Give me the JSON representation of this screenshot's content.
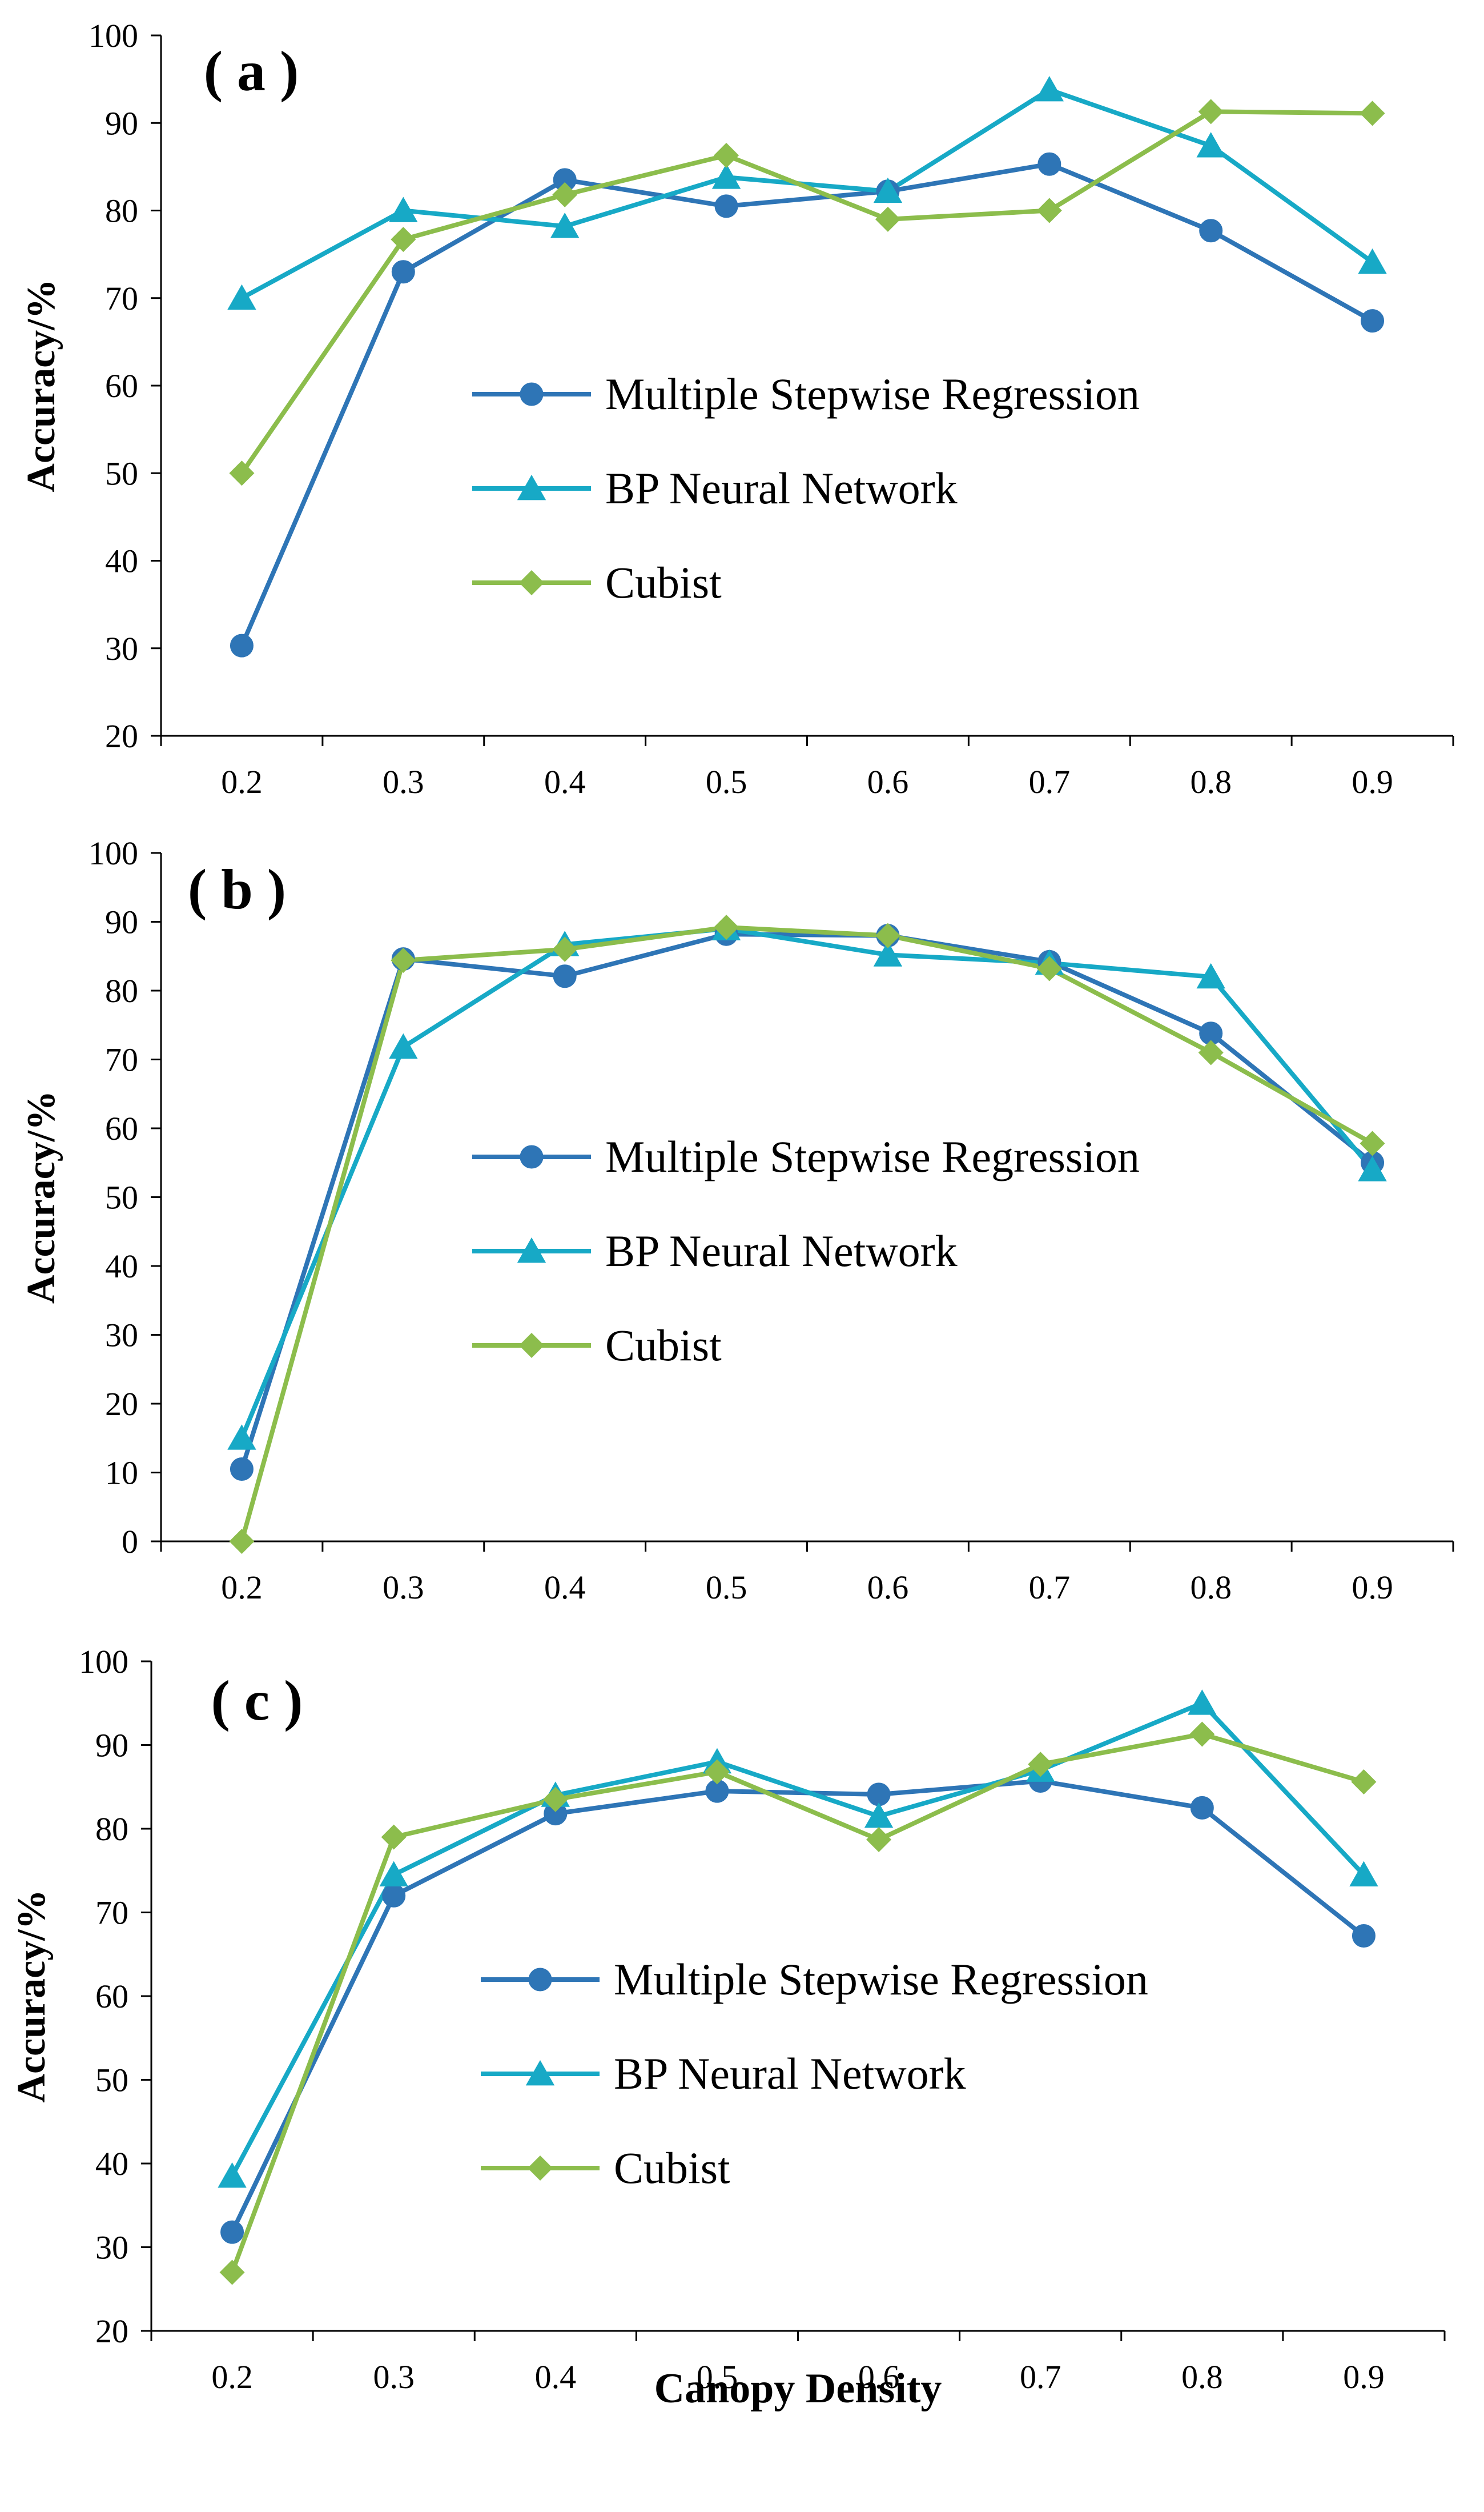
{
  "chart_data": [
    {
      "type": "line",
      "panel_label": "( a )",
      "ylabel": "Accuracy/%",
      "xlabel": "",
      "ylim": [
        20,
        100
      ],
      "yticks": [
        20,
        30,
        40,
        50,
        60,
        70,
        80,
        90,
        100
      ],
      "x": [
        0.2,
        0.3,
        0.4,
        0.5,
        0.6,
        0.7,
        0.8,
        0.9
      ],
      "xtick_labels": [
        "0.2",
        "0.3",
        "0.4",
        "0.5",
        "0.6",
        "0.7",
        "0.8",
        "0.9"
      ],
      "legend_position": "center",
      "series": [
        {
          "name": "Multiple Stepwise Regression",
          "marker": "circle",
          "color": "#2E75B6",
          "values": [
            30.3,
            73.0,
            83.5,
            80.5,
            82.2,
            85.3,
            77.7,
            67.4
          ]
        },
        {
          "name": "BP Neural Network",
          "marker": "triangle",
          "color": "#17A9C6",
          "values": [
            70.0,
            80.0,
            78.2,
            83.8,
            82.2,
            93.8,
            87.4,
            74.1
          ]
        },
        {
          "name": "Cubist",
          "marker": "diamond",
          "color": "#8CBD4C",
          "values": [
            50.0,
            76.7,
            81.8,
            86.3,
            79.0,
            80.0,
            91.3,
            91.1
          ]
        }
      ]
    },
    {
      "type": "line",
      "panel_label": "( b )",
      "ylabel": "Accuracy/%",
      "xlabel": "",
      "ylim": [
        0,
        100
      ],
      "yticks": [
        0,
        10,
        20,
        30,
        40,
        50,
        60,
        70,
        80,
        90,
        100
      ],
      "x": [
        0.2,
        0.3,
        0.4,
        0.5,
        0.6,
        0.7,
        0.8,
        0.9
      ],
      "xtick_labels": [
        "0.2",
        "0.3",
        "0.4",
        "0.5",
        "0.6",
        "0.7",
        "0.8",
        "0.9"
      ],
      "legend_position": "center",
      "series": [
        {
          "name": "Multiple Stepwise Regression",
          "marker": "circle",
          "color": "#2E75B6",
          "values": [
            10.5,
            84.6,
            82.1,
            88.2,
            88.0,
            84.2,
            73.8,
            55.0
          ]
        },
        {
          "name": "BP Neural Network",
          "marker": "triangle",
          "color": "#17A9C6",
          "values": [
            15.0,
            71.8,
            86.7,
            89.0,
            85.2,
            84.0,
            82.0,
            54.0
          ]
        },
        {
          "name": "Cubist",
          "marker": "diamond",
          "color": "#8CBD4C",
          "values": [
            0.0,
            84.4,
            86.0,
            89.2,
            88.0,
            83.2,
            71.0,
            57.8
          ]
        }
      ]
    },
    {
      "type": "line",
      "panel_label": "( c )",
      "ylabel": "Accuracy/%",
      "xlabel": "Canopy Density",
      "ylim": [
        20,
        100
      ],
      "yticks": [
        20,
        30,
        40,
        50,
        60,
        70,
        80,
        90,
        100
      ],
      "x": [
        0.2,
        0.3,
        0.4,
        0.5,
        0.6,
        0.7,
        0.8,
        0.9
      ],
      "xtick_labels": [
        "0.2",
        "0.3",
        "0.4",
        "0.5",
        "0.6",
        "0.7",
        "0.8",
        "0.9"
      ],
      "legend_position": "center",
      "series": [
        {
          "name": "Multiple Stepwise Regression",
          "marker": "circle",
          "color": "#2E75B6",
          "values": [
            31.8,
            72.0,
            81.8,
            84.5,
            84.1,
            85.7,
            82.5,
            67.2
          ]
        },
        {
          "name": "BP Neural Network",
          "marker": "triangle",
          "color": "#17A9C6",
          "values": [
            38.5,
            74.5,
            84.0,
            88.0,
            81.5,
            87.0,
            95.0,
            74.5
          ]
        },
        {
          "name": "Cubist",
          "marker": "diamond",
          "color": "#8CBD4C",
          "values": [
            27.0,
            79.0,
            83.5,
            86.8,
            78.7,
            87.7,
            91.3,
            85.6
          ]
        }
      ]
    }
  ]
}
